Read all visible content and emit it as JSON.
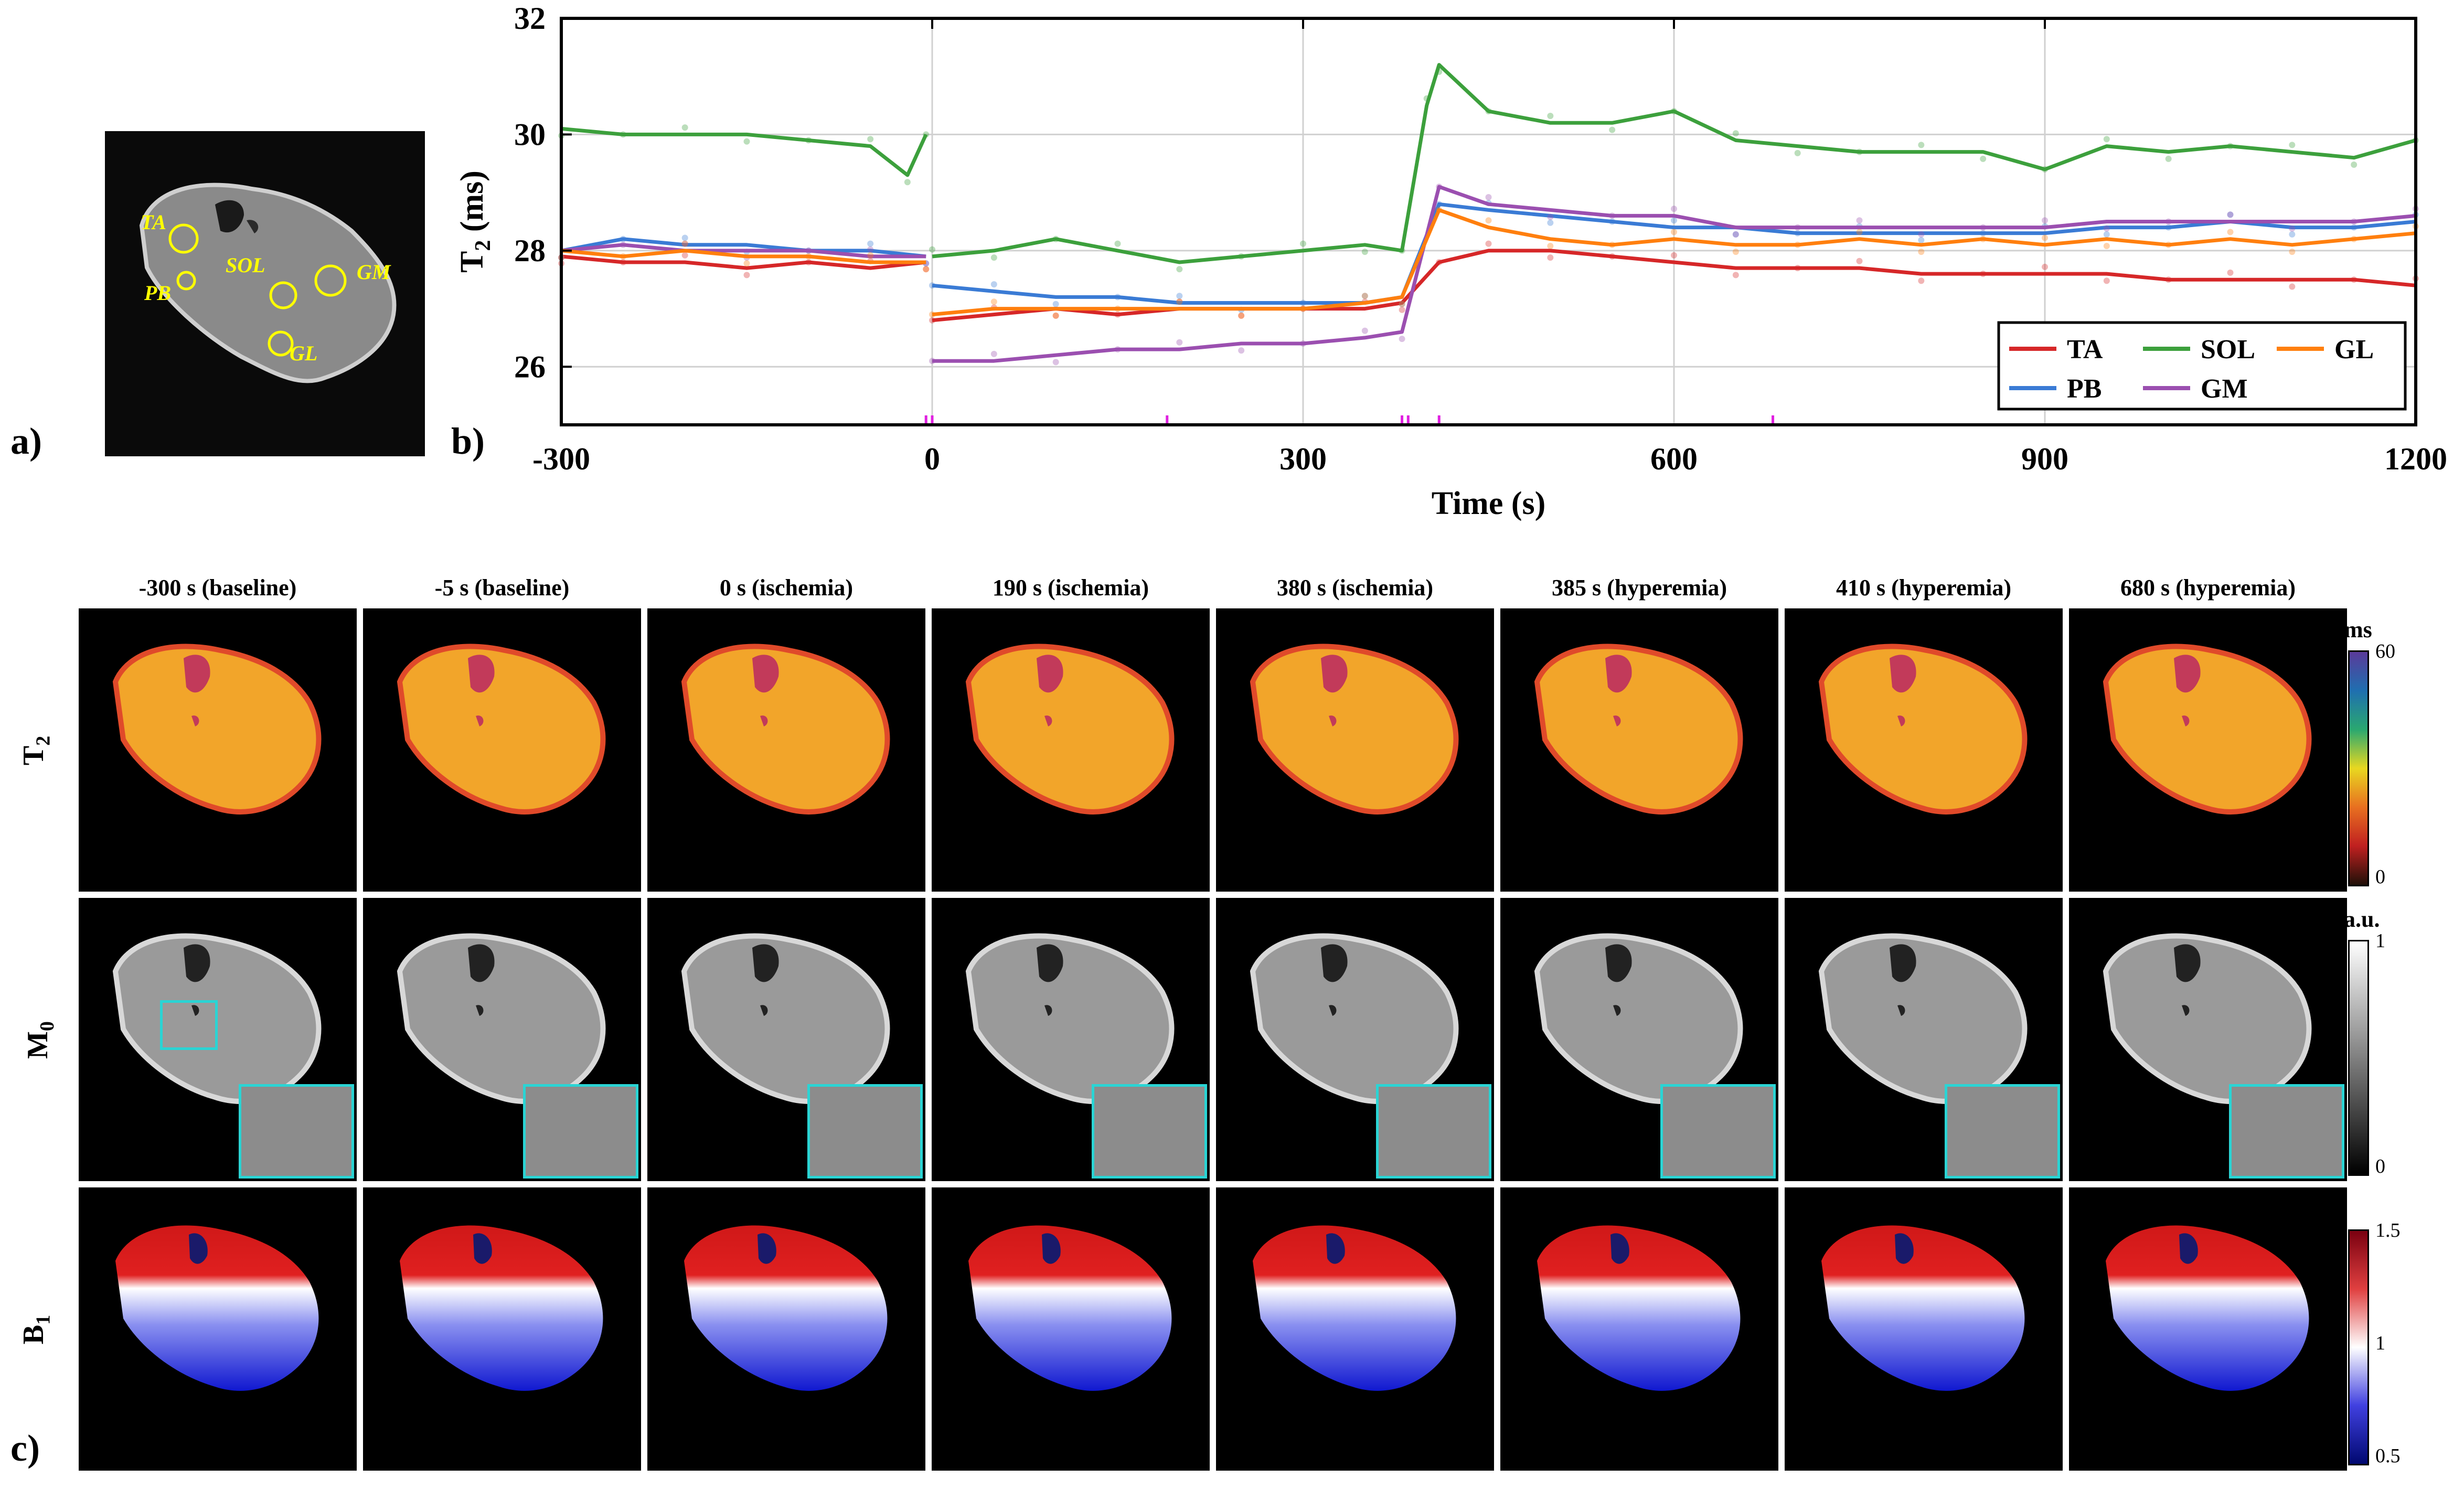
{
  "panel_letters": {
    "a": "a)",
    "b": "b)",
    "c": "c)"
  },
  "roi_labels": [
    "TA",
    "SOL",
    "GM",
    "PB",
    "GL"
  ],
  "chart_data": {
    "type": "line",
    "xlabel": "Time (s)",
    "ylabel_main": "T",
    "ylabel_sub": "2",
    "ylabel_unit": " (ms)",
    "xlim": [
      -300,
      1200
    ],
    "ylim": [
      25,
      32
    ],
    "xticks": [
      -300,
      0,
      300,
      600,
      900,
      1200
    ],
    "yticks": [
      26,
      28,
      30,
      32
    ],
    "grid": true,
    "legend_position": "bottom-right",
    "event_markers": [
      -300,
      -5,
      0,
      190,
      380,
      385,
      410,
      680
    ],
    "series": [
      {
        "name": "TA",
        "color": "#d62728",
        "points": [
          [
            -300,
            27.9
          ],
          [
            -250,
            27.8
          ],
          [
            -200,
            27.8
          ],
          [
            -150,
            27.7
          ],
          [
            -100,
            27.8
          ],
          [
            -50,
            27.7
          ],
          [
            -5,
            27.8
          ],
          [
            0,
            26.8
          ],
          [
            50,
            26.9
          ],
          [
            100,
            27.0
          ],
          [
            150,
            26.9
          ],
          [
            200,
            27.0
          ],
          [
            250,
            27.0
          ],
          [
            300,
            27.0
          ],
          [
            350,
            27.0
          ],
          [
            380,
            27.1
          ],
          [
            410,
            27.8
          ],
          [
            450,
            28.0
          ],
          [
            500,
            28.0
          ],
          [
            550,
            27.9
          ],
          [
            600,
            27.8
          ],
          [
            650,
            27.7
          ],
          [
            700,
            27.7
          ],
          [
            750,
            27.7
          ],
          [
            800,
            27.6
          ],
          [
            850,
            27.6
          ],
          [
            900,
            27.6
          ],
          [
            950,
            27.6
          ],
          [
            1000,
            27.5
          ],
          [
            1050,
            27.5
          ],
          [
            1100,
            27.5
          ],
          [
            1150,
            27.5
          ],
          [
            1200,
            27.4
          ]
        ]
      },
      {
        "name": "SOL",
        "color": "#3ca03c",
        "points": [
          [
            -300,
            30.1
          ],
          [
            -250,
            30.0
          ],
          [
            -200,
            30.0
          ],
          [
            -150,
            30.0
          ],
          [
            -100,
            29.9
          ],
          [
            -50,
            29.8
          ],
          [
            -20,
            29.3
          ],
          [
            -5,
            30.0
          ],
          [
            0,
            27.9
          ],
          [
            50,
            28.0
          ],
          [
            100,
            28.2
          ],
          [
            150,
            28.0
          ],
          [
            200,
            27.8
          ],
          [
            250,
            27.9
          ],
          [
            300,
            28.0
          ],
          [
            350,
            28.1
          ],
          [
            380,
            28.0
          ],
          [
            400,
            30.5
          ],
          [
            410,
            31.2
          ],
          [
            450,
            30.4
          ],
          [
            500,
            30.2
          ],
          [
            550,
            30.2
          ],
          [
            600,
            30.4
          ],
          [
            650,
            29.9
          ],
          [
            700,
            29.8
          ],
          [
            750,
            29.7
          ],
          [
            800,
            29.7
          ],
          [
            850,
            29.7
          ],
          [
            900,
            29.4
          ],
          [
            950,
            29.8
          ],
          [
            1000,
            29.7
          ],
          [
            1050,
            29.8
          ],
          [
            1100,
            29.7
          ],
          [
            1150,
            29.6
          ],
          [
            1200,
            29.9
          ]
        ]
      },
      {
        "name": "PB",
        "color": "#3a7bd5",
        "points": [
          [
            -300,
            28.0
          ],
          [
            -250,
            28.2
          ],
          [
            -200,
            28.1
          ],
          [
            -150,
            28.1
          ],
          [
            -100,
            28.0
          ],
          [
            -50,
            28.0
          ],
          [
            -5,
            27.9
          ],
          [
            0,
            27.4
          ],
          [
            50,
            27.3
          ],
          [
            100,
            27.2
          ],
          [
            150,
            27.2
          ],
          [
            200,
            27.1
          ],
          [
            250,
            27.1
          ],
          [
            300,
            27.1
          ],
          [
            350,
            27.1
          ],
          [
            380,
            27.2
          ],
          [
            410,
            28.8
          ],
          [
            450,
            28.7
          ],
          [
            500,
            28.6
          ],
          [
            550,
            28.5
          ],
          [
            600,
            28.4
          ],
          [
            650,
            28.4
          ],
          [
            700,
            28.3
          ],
          [
            750,
            28.3
          ],
          [
            800,
            28.3
          ],
          [
            850,
            28.3
          ],
          [
            900,
            28.3
          ],
          [
            950,
            28.4
          ],
          [
            1000,
            28.4
          ],
          [
            1050,
            28.5
          ],
          [
            1100,
            28.4
          ],
          [
            1150,
            28.4
          ],
          [
            1200,
            28.5
          ]
        ]
      },
      {
        "name": "GM",
        "color": "#9b4fb0",
        "points": [
          [
            -300,
            28.0
          ],
          [
            -250,
            28.1
          ],
          [
            -200,
            28.0
          ],
          [
            -150,
            28.0
          ],
          [
            -100,
            28.0
          ],
          [
            -50,
            27.9
          ],
          [
            -5,
            27.9
          ],
          [
            0,
            26.1
          ],
          [
            50,
            26.1
          ],
          [
            100,
            26.2
          ],
          [
            150,
            26.3
          ],
          [
            200,
            26.3
          ],
          [
            250,
            26.4
          ],
          [
            300,
            26.4
          ],
          [
            350,
            26.5
          ],
          [
            380,
            26.6
          ],
          [
            410,
            29.1
          ],
          [
            450,
            28.8
          ],
          [
            500,
            28.7
          ],
          [
            550,
            28.6
          ],
          [
            600,
            28.6
          ],
          [
            650,
            28.4
          ],
          [
            700,
            28.4
          ],
          [
            750,
            28.4
          ],
          [
            800,
            28.4
          ],
          [
            850,
            28.4
          ],
          [
            900,
            28.4
          ],
          [
            950,
            28.5
          ],
          [
            1000,
            28.5
          ],
          [
            1050,
            28.5
          ],
          [
            1100,
            28.5
          ],
          [
            1150,
            28.5
          ],
          [
            1200,
            28.6
          ]
        ]
      },
      {
        "name": "GL",
        "color": "#ff7f0e",
        "points": [
          [
            -300,
            28.0
          ],
          [
            -250,
            27.9
          ],
          [
            -200,
            28.0
          ],
          [
            -150,
            27.9
          ],
          [
            -100,
            27.9
          ],
          [
            -50,
            27.8
          ],
          [
            -5,
            27.8
          ],
          [
            0,
            26.9
          ],
          [
            50,
            27.0
          ],
          [
            100,
            27.0
          ],
          [
            150,
            27.0
          ],
          [
            200,
            27.0
          ],
          [
            250,
            27.0
          ],
          [
            300,
            27.0
          ],
          [
            350,
            27.1
          ],
          [
            380,
            27.2
          ],
          [
            410,
            28.7
          ],
          [
            450,
            28.4
          ],
          [
            500,
            28.2
          ],
          [
            550,
            28.1
          ],
          [
            600,
            28.2
          ],
          [
            650,
            28.1
          ],
          [
            700,
            28.1
          ],
          [
            750,
            28.2
          ],
          [
            800,
            28.1
          ],
          [
            850,
            28.2
          ],
          [
            900,
            28.1
          ],
          [
            950,
            28.2
          ],
          [
            1000,
            28.1
          ],
          [
            1050,
            28.2
          ],
          [
            1100,
            28.1
          ],
          [
            1150,
            28.2
          ],
          [
            1200,
            28.3
          ]
        ]
      }
    ]
  },
  "grid_panel": {
    "columns": [
      "-300 s (baseline)",
      "-5 s (baseline)",
      "0 s (ischemia)",
      "190 s (ischemia)",
      "380 s (ischemia)",
      "385 s (hyperemia)",
      "410 s (hyperemia)",
      "680 s (hyperemia)"
    ],
    "rows": [
      {
        "label": "T",
        "sub": "2",
        "colorbar_unit": "ms",
        "colorbar_ticks": [
          "60",
          "0"
        ]
      },
      {
        "label": "M",
        "sub": "0",
        "colorbar_unit": "a.u.",
        "colorbar_ticks": [
          "1",
          "0"
        ]
      },
      {
        "label": "B",
        "sub": "1",
        "colorbar_unit": "",
        "colorbar_ticks": [
          "1.5",
          "1",
          "0.5"
        ]
      }
    ]
  },
  "colors": {
    "roi": "#ffff00",
    "inset": "#2ad4d4",
    "marker": "#e020e0"
  }
}
